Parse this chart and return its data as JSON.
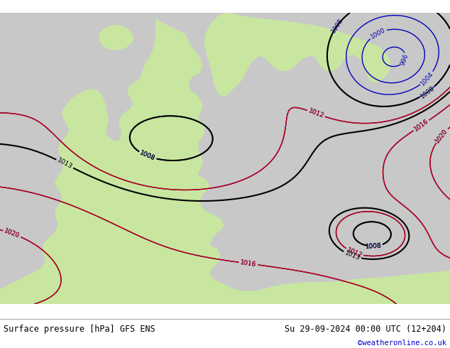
{
  "title_left": "Surface pressure [hPa] GFS ENS",
  "title_right": "Su 29-09-2024 00:00 UTC (12+204)",
  "credit": "©weatheronline.co.uk",
  "ocean_color": "#c8c8c8",
  "land_color": "#c8e6a0",
  "contour_black": "#000000",
  "contour_blue": "#0000bb",
  "contour_red": "#cc0000",
  "label_black": "#000000",
  "label_blue": "#0000bb",
  "label_red": "#cc0000",
  "footer_text": "#000000",
  "credit_color": "#0000cc",
  "sep_line_color": "#aaaaaa"
}
